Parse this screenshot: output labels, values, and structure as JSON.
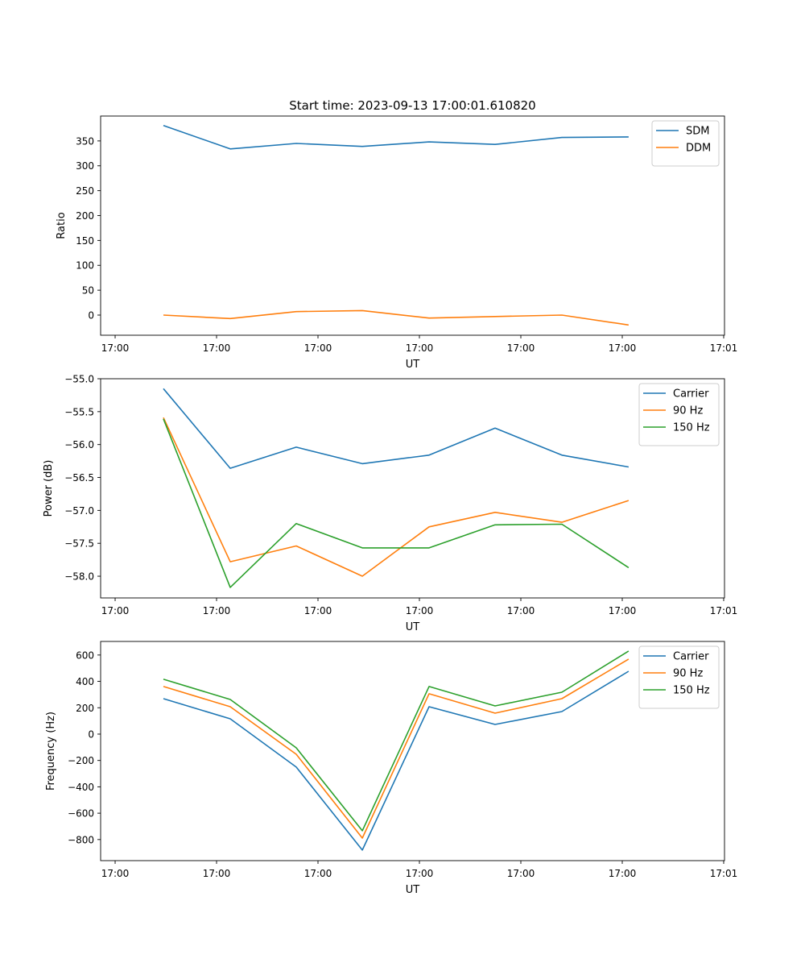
{
  "chart_data": [
    {
      "type": "line",
      "title": "Start time: 2023-09-13 17:00:01.610820",
      "xlabel": "UT",
      "ylabel": "Ratio",
      "x_units": "tick intervals from first tick",
      "x": [
        0.476,
        1.135,
        1.786,
        2.437,
        3.095,
        3.746,
        4.405,
        5.063
      ],
      "xlim": [
        -0.143,
        6.008
      ],
      "xtick_labels": [
        "17:00",
        "17:00",
        "17:00",
        "17:00",
        "17:00",
        "17:00",
        "17:01"
      ],
      "ylim": [
        -40.5,
        400
      ],
      "yticks": [
        0,
        50,
        100,
        150,
        200,
        250,
        300,
        350
      ],
      "legend": "top-right",
      "grid": false,
      "series": [
        {
          "name": "SDM",
          "color": "#1f77b4",
          "values": [
            381,
            334,
            345,
            339,
            348,
            343,
            357,
            358
          ]
        },
        {
          "name": "DDM",
          "color": "#ff7f0e",
          "values": [
            0,
            -7,
            7,
            9,
            -6,
            -3,
            0,
            -20
          ]
        }
      ]
    },
    {
      "type": "line",
      "title": "",
      "xlabel": "UT",
      "ylabel": "Power (dB)",
      "x_units": "tick intervals from first tick",
      "x": [
        0.476,
        1.135,
        1.786,
        2.437,
        3.095,
        3.746,
        4.405,
        5.063
      ],
      "xlim": [
        -0.143,
        6.008
      ],
      "xtick_labels": [
        "17:00",
        "17:00",
        "17:00",
        "17:00",
        "17:00",
        "17:00",
        "17:01"
      ],
      "ylim": [
        -58.33,
        -55.0
      ],
      "yticks": [
        -58.0,
        -57.5,
        -57.0,
        -56.5,
        -56.0,
        -55.5,
        -55.0
      ],
      "ytick_labels": [
        "−58.0",
        "−57.5",
        "−57.0",
        "−56.5",
        "−56.0",
        "−55.5",
        "−55.0"
      ],
      "legend": "top-right",
      "grid": false,
      "series": [
        {
          "name": "Carrier",
          "color": "#1f77b4",
          "values": [
            -55.15,
            -56.36,
            -56.04,
            -56.29,
            -56.16,
            -55.75,
            -56.16,
            -56.34
          ]
        },
        {
          "name": "90 Hz",
          "color": "#ff7f0e",
          "values": [
            -55.59,
            -57.78,
            -57.54,
            -58.0,
            -57.25,
            -57.03,
            -57.18,
            -56.85
          ]
        },
        {
          "name": "150 Hz",
          "color": "#2ca02c",
          "values": [
            -55.61,
            -58.17,
            -57.2,
            -57.57,
            -57.57,
            -57.22,
            -57.21,
            -57.87
          ]
        }
      ]
    },
    {
      "type": "line",
      "title": "",
      "xlabel": "UT",
      "ylabel": "Frequency (Hz)",
      "x_units": "tick intervals from first tick",
      "x": [
        0.476,
        1.135,
        1.786,
        2.437,
        3.095,
        3.746,
        4.405,
        5.063
      ],
      "xlim": [
        -0.143,
        6.008
      ],
      "xtick_labels": [
        "17:00",
        "17:00",
        "17:00",
        "17:00",
        "17:00",
        "17:00",
        "17:01"
      ],
      "ylim": [
        -960,
        703
      ],
      "yticks": [
        -800,
        -600,
        -400,
        -200,
        0,
        200,
        400,
        600
      ],
      "ytick_labels": [
        "−800",
        "−600",
        "−400",
        "−200",
        "0",
        "200",
        "400",
        "600"
      ],
      "legend": "top-right",
      "grid": false,
      "series": [
        {
          "name": "Carrier",
          "color": "#1f77b4",
          "values": [
            269,
            116,
            -250,
            -880,
            208,
            73,
            171,
            477
          ]
        },
        {
          "name": "90 Hz",
          "color": "#ff7f0e",
          "values": [
            361,
            208,
            -153,
            -789,
            306,
            159,
            269,
            569
          ]
        },
        {
          "name": "150 Hz",
          "color": "#2ca02c",
          "values": [
            416,
            263,
            -104,
            -733,
            361,
            214,
            318,
            630
          ]
        }
      ]
    }
  ]
}
